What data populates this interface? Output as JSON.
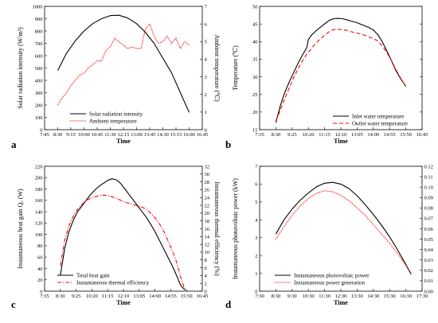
{
  "chart_data": [
    {
      "panel": "a",
      "type": "line",
      "xlabel": "Time",
      "ylabel": "Solar radiation intensity (W/m²)",
      "y2label": "Ambient temperature (℃)",
      "xticks": [
        "7:45",
        "8:30",
        "9:15",
        "10:00",
        "10:45",
        "11:30",
        "12:15",
        "13:00",
        "13:45",
        "14:30",
        "15:15",
        "16:00",
        "16:45"
      ],
      "xlim": [
        7.75,
        16.75
      ],
      "ylim": [
        0,
        1000
      ],
      "yticks": [
        0,
        100,
        200,
        300,
        400,
        500,
        600,
        700,
        800,
        900,
        1000
      ],
      "y2lim": [
        0,
        7
      ],
      "y2ticks": [
        0,
        1,
        2,
        3,
        4,
        5,
        6,
        7
      ],
      "legend_position": "lower-left",
      "series": [
        {
          "name": "Solar radiation intensity",
          "axis": "left",
          "color": "#000000",
          "style": "solid",
          "x": [
            8.5,
            9.0,
            9.5,
            10.0,
            10.5,
            11.0,
            11.5,
            12.0,
            12.5,
            13.0,
            13.5,
            14.0,
            14.5,
            15.0,
            15.5,
            16.0
          ],
          "y": [
            480,
            620,
            720,
            800,
            860,
            900,
            925,
            928,
            905,
            860,
            790,
            700,
            580,
            460,
            300,
            140
          ]
        },
        {
          "name": "Ambient temperature",
          "axis": "right",
          "color": "#ff0000",
          "style": "dotted",
          "x": [
            8.5,
            8.75,
            9.0,
            9.25,
            9.5,
            9.75,
            10.0,
            10.25,
            10.5,
            10.75,
            11.0,
            11.25,
            11.5,
            11.75,
            12.0,
            12.25,
            12.5,
            12.75,
            13.0,
            13.25,
            13.5,
            13.75,
            14.0,
            14.25,
            14.5,
            14.75,
            15.0,
            15.25,
            15.5,
            15.75,
            16.0
          ],
          "y": [
            1.4,
            1.8,
            2.1,
            2.5,
            2.8,
            3.1,
            3.2,
            3.5,
            3.7,
            3.9,
            3.9,
            4.5,
            4.7,
            5.2,
            5.0,
            4.8,
            4.6,
            4.7,
            4.6,
            4.6,
            5.7,
            6.0,
            5.3,
            4.9,
            5.0,
            5.3,
            4.9,
            5.2,
            4.6,
            5.0,
            4.8
          ]
        }
      ]
    },
    {
      "panel": "b",
      "type": "line",
      "xlabel": "Time",
      "ylabel": "Temperature (℃)",
      "xticks": [
        "7:35",
        "8:30",
        "9:25",
        "10:20",
        "11:15",
        "12:10",
        "13:05",
        "14:00",
        "14:55",
        "15:50",
        "16:45"
      ],
      "xlim": [
        7.5833,
        16.75
      ],
      "ylim": [
        15,
        50
      ],
      "yticks": [
        15,
        20,
        25,
        30,
        35,
        40,
        45,
        50
      ],
      "legend_position": "lower-right",
      "series": [
        {
          "name": "Inlet water temperature",
          "color": "#000000",
          "style": "solid",
          "x": [
            8.5,
            8.75,
            9.0,
            9.25,
            9.5,
            9.75,
            10.0,
            10.25,
            10.33,
            10.5,
            10.75,
            11.0,
            11.25,
            11.5,
            11.75,
            12.0,
            12.25,
            12.5,
            12.75,
            13.0,
            13.25,
            13.5,
            13.75,
            14.0,
            14.25,
            14.5,
            14.75,
            15.0,
            15.25,
            15.5,
            15.83
          ],
          "y": [
            17.0,
            21.8,
            25.5,
            28.5,
            31.2,
            33.8,
            36.2,
            38.3,
            40.5,
            41.8,
            43.0,
            44.0,
            45.0,
            46.0,
            46.5,
            46.6,
            46.5,
            46.2,
            45.8,
            45.5,
            45.0,
            44.5,
            44.0,
            43.3,
            42.0,
            40.0,
            37.5,
            34.8,
            32.0,
            29.8,
            27.3
          ]
        },
        {
          "name": "Outlet water temperature",
          "color": "#ff0000",
          "style": "dashed",
          "x": [
            8.5,
            8.75,
            9.0,
            9.25,
            9.5,
            9.75,
            10.0,
            10.25,
            10.5,
            10.75,
            11.0,
            11.25,
            11.5,
            11.75,
            12.0,
            12.25,
            12.5,
            12.75,
            13.0,
            13.25,
            13.5,
            13.75,
            14.0,
            14.25,
            14.5,
            14.75,
            15.0,
            15.25,
            15.5,
            15.83
          ],
          "y": [
            17.5,
            20.5,
            23.8,
            26.8,
            29.8,
            32.3,
            34.5,
            36.5,
            38.0,
            39.5,
            40.7,
            41.8,
            42.8,
            43.4,
            43.5,
            43.4,
            43.2,
            42.8,
            42.5,
            42.2,
            41.8,
            41.3,
            40.8,
            40.2,
            38.8,
            37.0,
            34.8,
            32.3,
            30.0,
            27.2
          ]
        }
      ]
    },
    {
      "panel": "c",
      "type": "line",
      "xlabel": "Time",
      "ylabel": "Instantaneous heat gain Qᵤ (W)",
      "y2label": "Instantaneous thermal efficiency (%)",
      "xticks": [
        "7:35",
        "8:30",
        "9:25",
        "10:20",
        "11:15",
        "12:10",
        "13:05",
        "14:00",
        "14:55",
        "15:50",
        "16:45"
      ],
      "xlim": [
        7.5833,
        16.75
      ],
      "ylim": [
        0,
        220
      ],
      "yticks": [
        0,
        20,
        40,
        60,
        80,
        100,
        120,
        140,
        160,
        180,
        200,
        220
      ],
      "y2lim": [
        0,
        32
      ],
      "y2ticks": [
        0,
        2,
        4,
        6,
        8,
        10,
        12,
        14,
        16,
        18,
        20,
        22,
        24,
        26,
        28,
        30,
        32
      ],
      "legend_position": "lower-left",
      "series": [
        {
          "name": "Total heat gain",
          "axis": "left",
          "color": "#000000",
          "style": "solid",
          "x": [
            8.5,
            8.75,
            9.0,
            9.25,
            9.5,
            9.75,
            10.0,
            10.25,
            10.5,
            10.75,
            11.0,
            11.25,
            11.5,
            11.75,
            12.0,
            12.25,
            12.5,
            12.75,
            13.0,
            13.25,
            13.5,
            13.75,
            14.0,
            14.25,
            14.5,
            14.75,
            15.0,
            15.25,
            15.5,
            15.75
          ],
          "y": [
            28,
            75,
            105,
            125,
            140,
            150,
            160,
            170,
            178,
            185,
            190,
            195,
            198,
            196,
            190,
            180,
            170,
            160,
            150,
            140,
            130,
            118,
            105,
            90,
            75,
            60,
            45,
            28,
            10,
            2
          ]
        },
        {
          "name": "Instantaneous thermal efficiency",
          "axis": "right",
          "color": "#ff0000",
          "style": "dashdot",
          "x": [
            8.5,
            8.75,
            9.0,
            9.25,
            9.5,
            9.75,
            10.0,
            10.25,
            10.5,
            10.75,
            11.0,
            11.25,
            11.5,
            11.75,
            12.0,
            12.25,
            12.5,
            12.75,
            13.0,
            13.25,
            13.5,
            13.75,
            14.0,
            14.25,
            14.5,
            14.75,
            15.0,
            15.25,
            15.5,
            15.75
          ],
          "y": [
            6.5,
            13.0,
            16.8,
            19.2,
            21.0,
            22.2,
            23.2,
            23.8,
            24.2,
            24.5,
            24.6,
            24.5,
            24.2,
            23.8,
            23.3,
            22.8,
            22.5,
            22.2,
            21.8,
            21.5,
            21.0,
            20.0,
            18.8,
            17.3,
            15.5,
            13.0,
            10.5,
            7.5,
            3.5,
            0.3
          ]
        }
      ]
    },
    {
      "panel": "d",
      "type": "line",
      "xlabel": "Time",
      "ylabel": "Instantaneous photovoltaic power (kW)",
      "y2label": "Instantaneous power generation (kWh)",
      "xticks": [
        "7:30",
        "8:30",
        "9:30",
        "10:30",
        "11:30",
        "12:30",
        "13:30",
        "14:30",
        "15:30",
        "16:30",
        "17:30"
      ],
      "xlim": [
        7.5,
        17.5
      ],
      "ylim": [
        0,
        7
      ],
      "yticks": [
        0,
        1,
        2,
        3,
        4,
        5,
        6,
        7
      ],
      "y2lim": [
        0,
        0.12
      ],
      "y2ticks": [
        0.0,
        0.01,
        0.02,
        0.03,
        0.04,
        0.05,
        0.06,
        0.07,
        0.08,
        0.09,
        0.1,
        0.11,
        0.12
      ],
      "legend_position": "lower-center",
      "series": [
        {
          "name": "Instantaneous photovoltaic power",
          "axis": "left",
          "color": "#000000",
          "style": "solid",
          "x": [
            8.5,
            9.0,
            9.5,
            10.0,
            10.5,
            11.0,
            11.5,
            12.0,
            12.5,
            13.0,
            13.5,
            14.0,
            14.5,
            15.0,
            15.5,
            16.0,
            16.5,
            16.83
          ],
          "y": [
            3.2,
            4.0,
            4.6,
            5.1,
            5.5,
            5.85,
            6.05,
            6.1,
            6.0,
            5.75,
            5.35,
            4.85,
            4.3,
            3.7,
            3.05,
            2.3,
            1.5,
            0.95
          ]
        },
        {
          "name": "Instantaneous power generation",
          "axis": "right",
          "color": "#ff0000",
          "style": "dotted",
          "x": [
            8.5,
            9.0,
            9.5,
            10.0,
            10.5,
            11.0,
            11.5,
            12.0,
            12.5,
            13.0,
            13.5,
            14.0,
            14.5,
            15.0,
            15.5,
            16.0,
            16.5,
            16.83
          ],
          "y": [
            0.05,
            0.062,
            0.073,
            0.082,
            0.089,
            0.094,
            0.0965,
            0.0955,
            0.092,
            0.087,
            0.08,
            0.073,
            0.064,
            0.055,
            0.046,
            0.036,
            0.025,
            0.016
          ]
        }
      ]
    }
  ]
}
